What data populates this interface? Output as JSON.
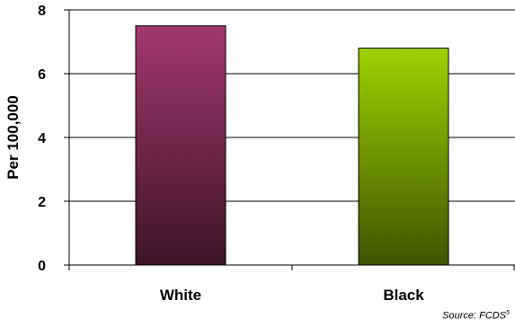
{
  "chart_data": {
    "type": "bar",
    "categories": [
      "White",
      "Black"
    ],
    "values": [
      7.5,
      6.8
    ],
    "ylabel": "Per 100,000",
    "xlabel": "",
    "ylim": [
      0,
      8
    ],
    "yticks": [
      0,
      2,
      4,
      6,
      8
    ],
    "grid": true,
    "colors": {
      "White": {
        "top": "#a3386f",
        "bottom": "#3e1428"
      },
      "Black": {
        "top": "#9fd100",
        "bottom": "#3d5600"
      }
    }
  },
  "source": {
    "text": "Source: FCDS",
    "superscript": "5"
  }
}
